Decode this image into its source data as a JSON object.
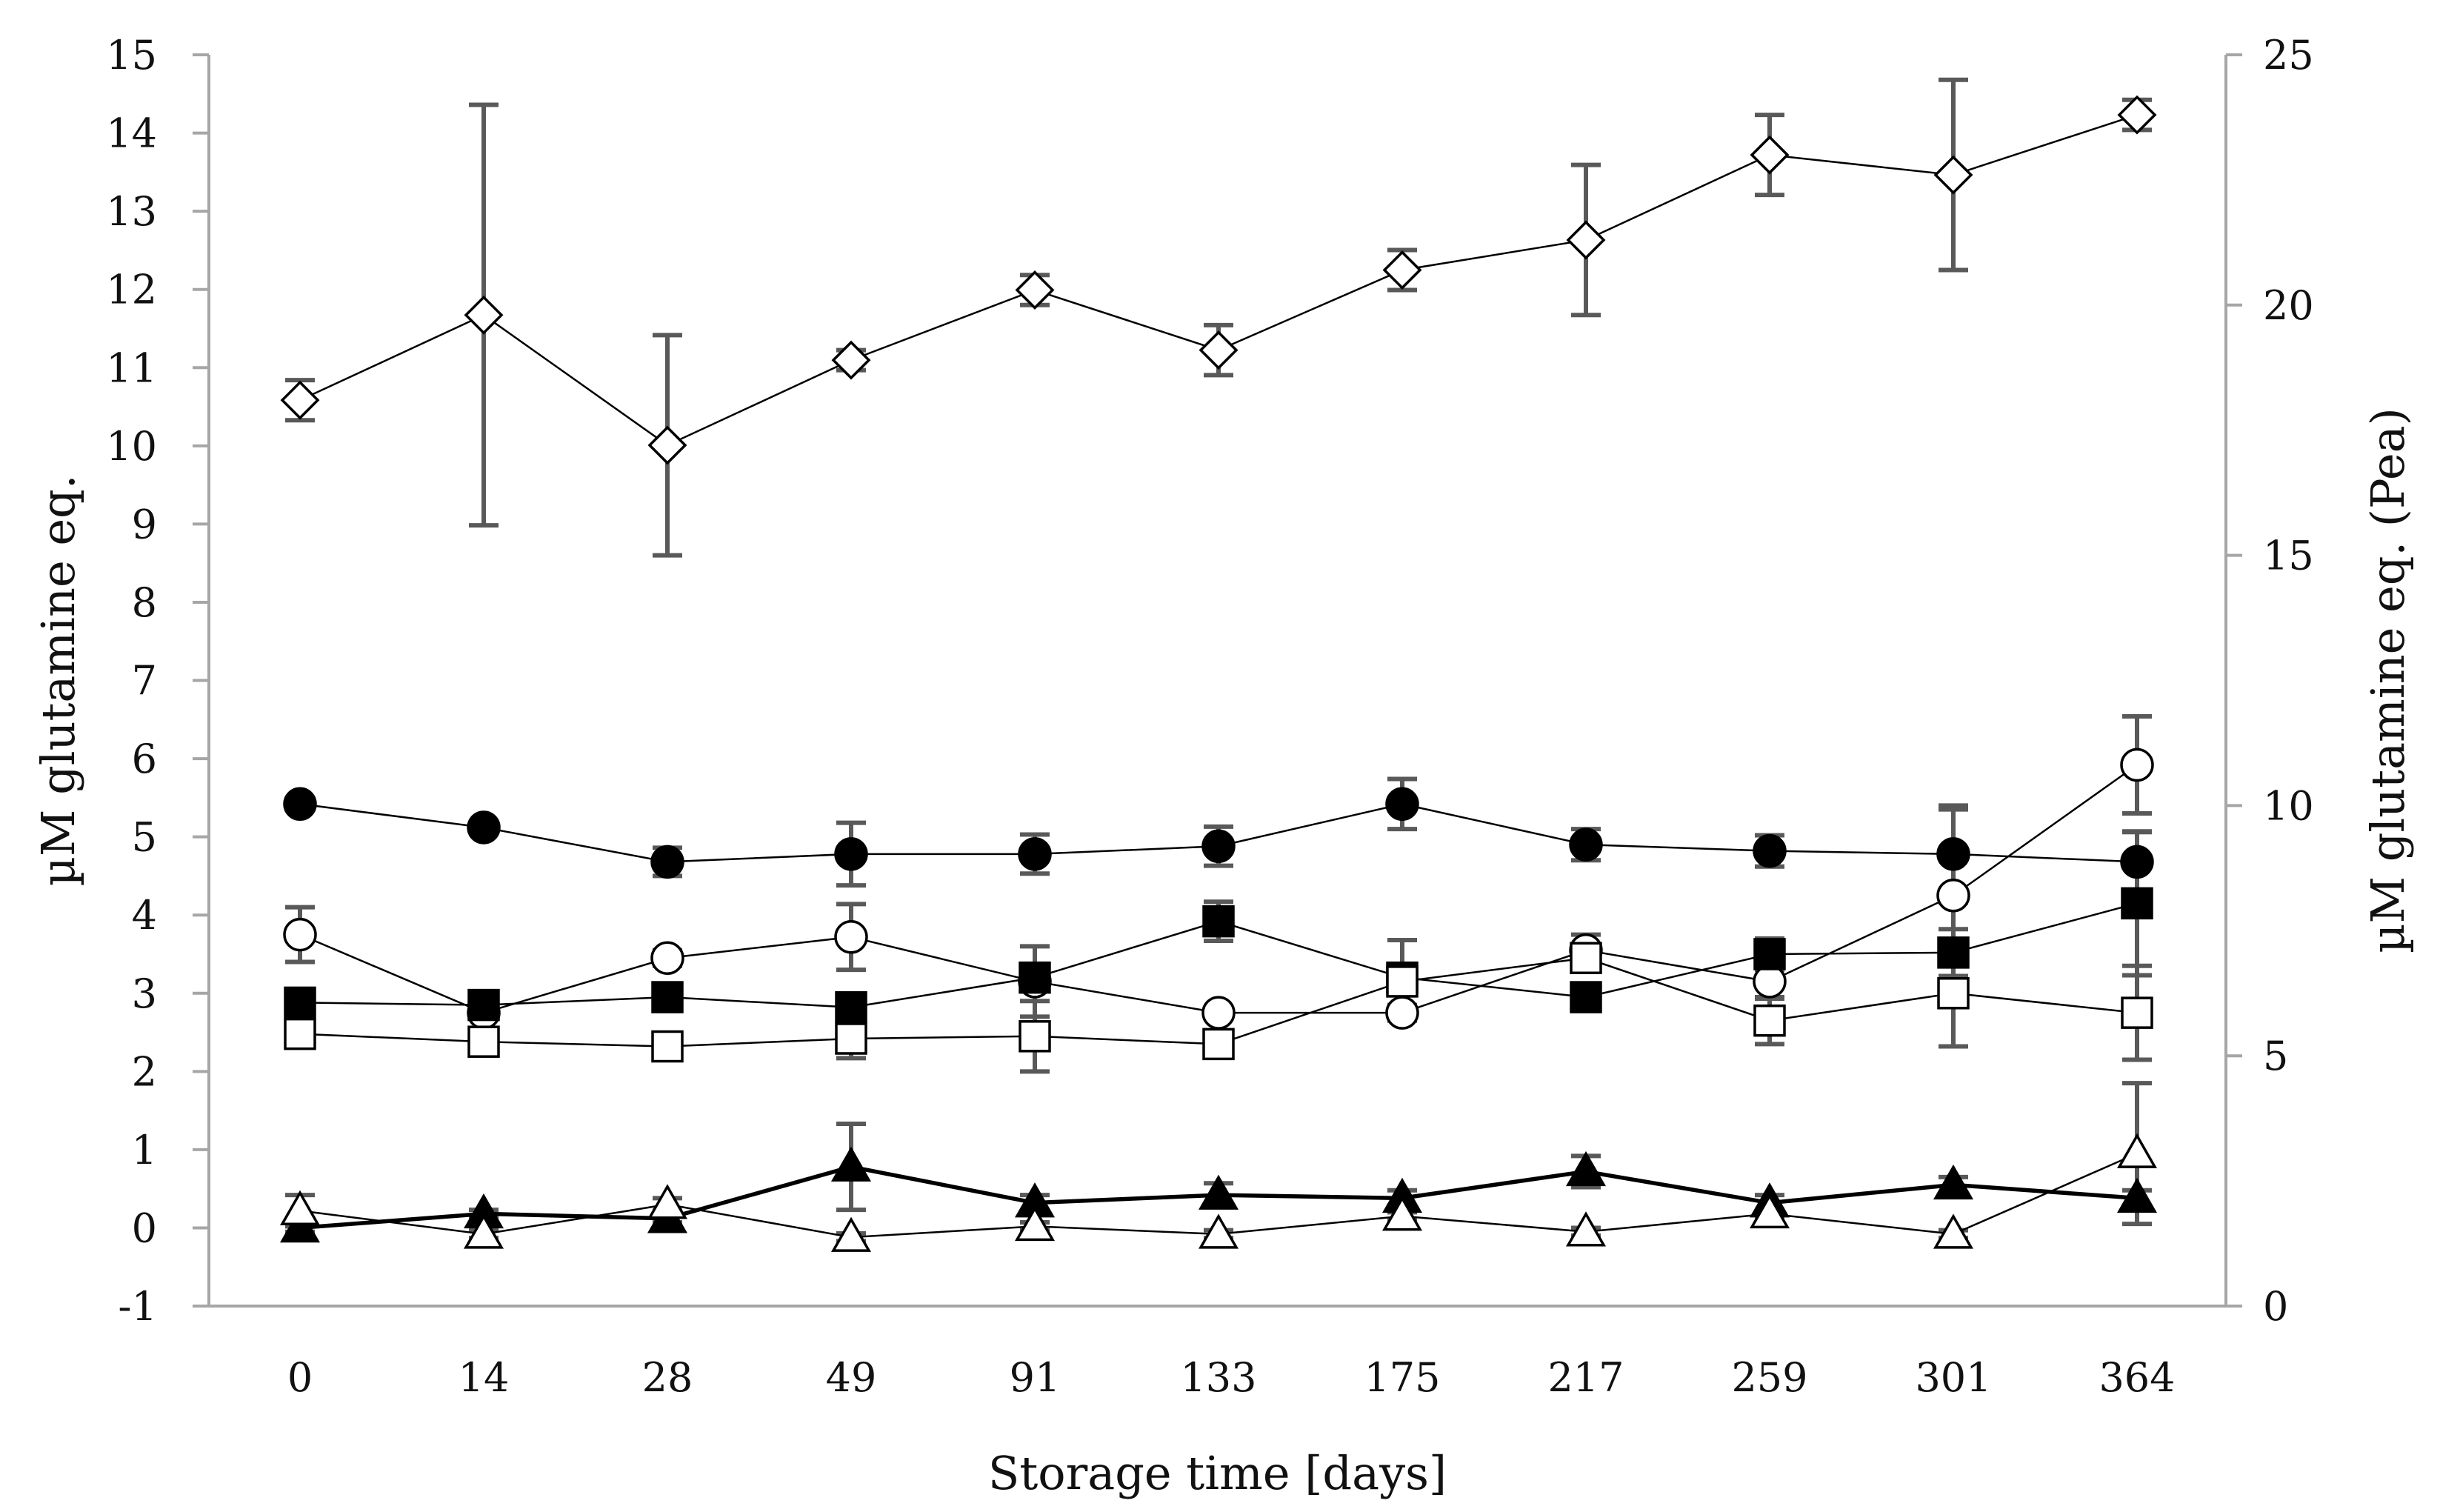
{
  "chart_data": {
    "type": "line",
    "title": "",
    "xlabel": "Storage time [days]",
    "ylabel": "µM glutamine eq.",
    "y2label": "µM glutamine eq. (Pea)",
    "categories": [
      "0",
      "14",
      "28",
      "49",
      "91",
      "133",
      "175",
      "217",
      "259",
      "301",
      "364"
    ],
    "ylim": [
      -1,
      15
    ],
    "y2lim": [
      0,
      25
    ],
    "yticks": [
      "-1",
      "0",
      "1",
      "2",
      "3",
      "4",
      "5",
      "6",
      "7",
      "8",
      "9",
      "10",
      "11",
      "12",
      "13",
      "14",
      "15"
    ],
    "y2ticks": [
      "0",
      "5",
      "10",
      "15",
      "20",
      "25"
    ],
    "grid": false,
    "legend": "none",
    "series": [
      {
        "name": "Pea",
        "axis": "right",
        "marker": "diamond-open",
        "values": [
          18.1,
          19.8,
          17.2,
          18.9,
          20.3,
          19.1,
          20.7,
          21.3,
          23.0,
          22.6,
          23.8
        ],
        "errors": [
          0.4,
          4.2,
          2.2,
          0.2,
          0.3,
          0.5,
          0.4,
          1.5,
          0.8,
          1.9,
          0.3
        ]
      },
      {
        "name": "Filled circle",
        "axis": "left",
        "marker": "circle-filled",
        "values": [
          5.42,
          5.12,
          4.68,
          4.78,
          4.78,
          4.88,
          5.42,
          4.9,
          4.82,
          4.78,
          4.68
        ],
        "errors": [
          0.05,
          0.05,
          0.18,
          0.4,
          0.25,
          0.25,
          0.32,
          0.2,
          0.2,
          0.62,
          0.38
        ]
      },
      {
        "name": "Open circle",
        "axis": "left",
        "marker": "circle-open",
        "values": [
          3.75,
          2.75,
          3.45,
          3.72,
          3.15,
          2.75,
          2.75,
          3.55,
          3.15,
          4.25,
          5.92
        ],
        "errors": [
          0.35,
          0.08,
          0.1,
          0.42,
          0.45,
          0.05,
          0.1,
          0.2,
          0.22,
          1.1,
          0.62
        ]
      },
      {
        "name": "Filled square",
        "axis": "left",
        "marker": "square-filled",
        "values": [
          2.88,
          2.85,
          2.95,
          2.82,
          3.2,
          3.92,
          3.2,
          2.95,
          3.5,
          3.52,
          4.15
        ],
        "errors": [
          0.05,
          0.05,
          0.05,
          0.08,
          0.12,
          0.25,
          0.48,
          0.05,
          0.2,
          0.3,
          0.92
        ]
      },
      {
        "name": "Open square",
        "axis": "left",
        "marker": "square-open",
        "values": [
          2.48,
          2.38,
          2.32,
          2.42,
          2.45,
          2.35,
          3.15,
          3.45,
          2.65,
          3.0,
          2.75
        ],
        "errors": [
          0.08,
          0.05,
          0.05,
          0.25,
          0.45,
          0.05,
          0.15,
          0.15,
          0.3,
          0.68,
          0.6
        ]
      },
      {
        "name": "Filled triangle",
        "axis": "left",
        "marker": "triangle-filled",
        "values": [
          0.0,
          0.18,
          0.12,
          0.78,
          0.32,
          0.42,
          0.38,
          0.72,
          0.32,
          0.55,
          0.38
        ],
        "errors": [
          0.05,
          0.05,
          0.05,
          0.55,
          0.1,
          0.15,
          0.1,
          0.2,
          0.1,
          0.1,
          0.1
        ]
      },
      {
        "name": "Open triangle",
        "axis": "left",
        "marker": "triangle-open",
        "values": [
          0.22,
          -0.08,
          0.3,
          -0.12,
          0.02,
          -0.08,
          0.15,
          -0.05,
          0.18,
          -0.08,
          0.95
        ],
        "errors": [
          0.2,
          0.05,
          0.08,
          0.05,
          0.05,
          0.05,
          0.05,
          0.05,
          0.05,
          0.05,
          0.9
        ]
      }
    ]
  }
}
